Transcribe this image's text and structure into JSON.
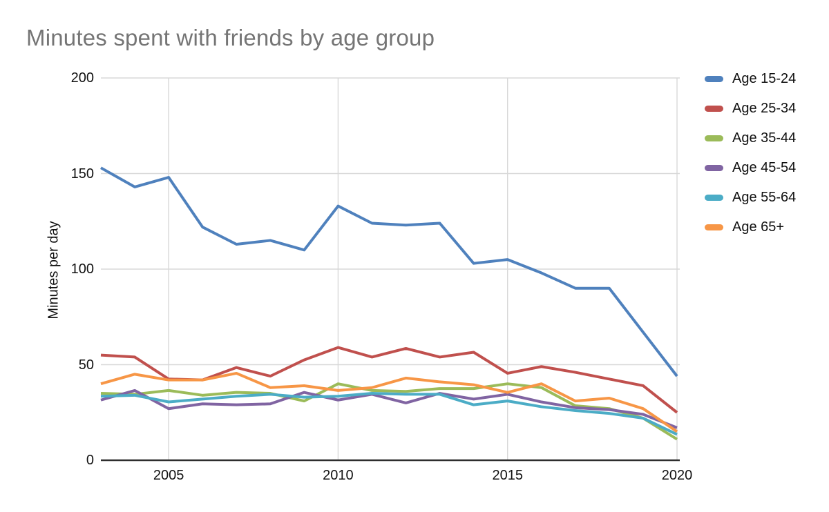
{
  "title": "Minutes spent with friends by age group",
  "chart_data": {
    "type": "line",
    "title": "Minutes spent with friends by age group",
    "xlabel": "",
    "ylabel": "Minutes per day",
    "x": [
      2003,
      2004,
      2005,
      2006,
      2007,
      2008,
      2009,
      2010,
      2011,
      2012,
      2013,
      2014,
      2015,
      2016,
      2017,
      2018,
      2019,
      2020
    ],
    "xlim": [
      2003,
      2020
    ],
    "ylim": [
      0,
      200
    ],
    "x_ticks": [
      2005,
      2010,
      2015,
      2020
    ],
    "y_ticks": [
      0,
      50,
      100,
      150,
      200
    ],
    "grid": true,
    "legend_position": "right",
    "series": [
      {
        "name": "Age 15-24",
        "color": "#4F81BD",
        "values": [
          153,
          143,
          148,
          122,
          113,
          115,
          110,
          133,
          124,
          123,
          124,
          103,
          105,
          98,
          90,
          90,
          67,
          44
        ]
      },
      {
        "name": "Age 25-34",
        "color": "#C0504D",
        "values": [
          55,
          54,
          42.5,
          42,
          48.5,
          44,
          52.5,
          59,
          54,
          58.5,
          54,
          56.5,
          45.5,
          49,
          46,
          42.5,
          39,
          25
        ]
      },
      {
        "name": "Age 35-44",
        "color": "#9BBB59",
        "values": [
          35,
          34.5,
          36.5,
          34,
          35.5,
          35,
          31,
          40,
          36.5,
          36,
          37.5,
          37.5,
          40,
          38,
          28.5,
          27,
          22,
          11
        ]
      },
      {
        "name": "Age 45-54",
        "color": "#8064A2",
        "values": [
          31.5,
          36.5,
          27,
          29.5,
          29,
          29.5,
          35.5,
          31.5,
          34.5,
          30,
          35,
          32,
          34.5,
          30.5,
          27.5,
          26.5,
          24,
          17
        ]
      },
      {
        "name": "Age 55-64",
        "color": "#4BACC6",
        "values": [
          33.5,
          34,
          30.5,
          32,
          33.5,
          34.5,
          33,
          33.5,
          35,
          34.5,
          34.5,
          29,
          31,
          28,
          26,
          24.5,
          22,
          13.5
        ]
      },
      {
        "name": "Age 65+",
        "color": "#F79646",
        "values": [
          40,
          45,
          42,
          42,
          45.5,
          38,
          39,
          36.5,
          38,
          43,
          41,
          39.5,
          35.5,
          40,
          31,
          32.5,
          27,
          15
        ]
      }
    ]
  },
  "colors": {
    "background": "#ffffff",
    "title_text": "#757575",
    "axis_text": "#111111",
    "gridline": "#d8d8d8",
    "axis_line": "#2e2e2e"
  }
}
